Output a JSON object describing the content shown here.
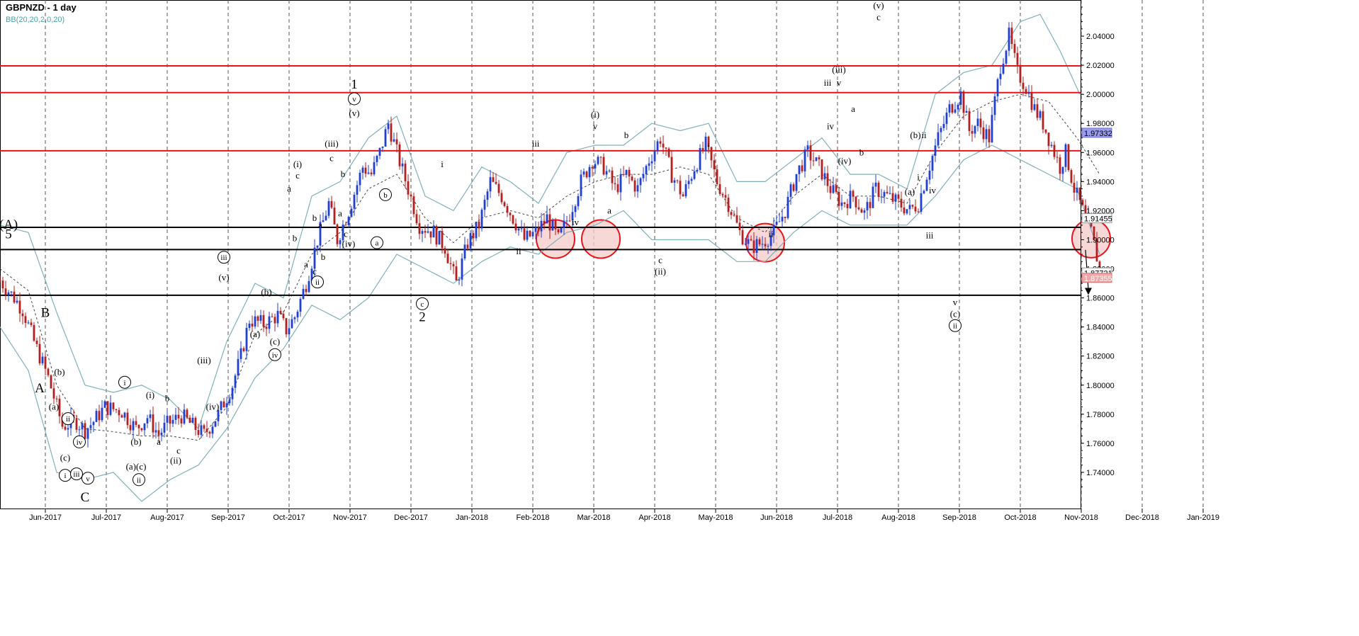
{
  "header": {
    "title": "GBPNZD - 1 day",
    "indicator": "BB(20,20,2,0,20)"
  },
  "colors": {
    "bullish": "#1f3fd8",
    "bearish": "#b41f1f",
    "resistance": "#e8141b",
    "support": "#000000",
    "bollinger": "#7fb0b8",
    "highlight": "#f6c9c9",
    "last_price_label": "#9a9cf0",
    "second_price_label": "#f1a7a7"
  },
  "chart_data": {
    "type": "candlestick",
    "symbol": "GBPNZD",
    "timeframe": "1 day",
    "ylim": [
      1.72,
      2.06
    ],
    "yticks": [
      "1.74000",
      "1.76000",
      "1.78000",
      "1.80000",
      "1.82000",
      "1.84000",
      "1.86000",
      "1.88000",
      "1.90000",
      "1.92000",
      "1.94000",
      "1.96000",
      "1.98000",
      "2.00000",
      "2.02000",
      "2.04000"
    ],
    "xticks": [
      "Jun-2017",
      "Jul-2017",
      "Aug-2017",
      "Sep-2017",
      "Oct-2017",
      "Nov-2017",
      "Dec-2017",
      "Jan-2018",
      "Feb-2018",
      "Mar-2018",
      "Apr-2018",
      "May-2018",
      "Jun-2018",
      "Jul-2018",
      "Aug-2018",
      "Sep-2018",
      "Oct-2018",
      "Nov-2018",
      "Dec-2018",
      "Jan-2019"
    ],
    "price_labels": [
      {
        "value": "1.97332",
        "style": "last"
      },
      {
        "value": "1.91455",
        "style": "plain"
      },
      {
        "value": "1.87721",
        "style": "plain"
      },
      {
        "value": "1.87355",
        "style": "second"
      }
    ],
    "horizontal_levels": [
      {
        "y": 2.0196,
        "kind": "resistance"
      },
      {
        "y": 2.0012,
        "kind": "resistance"
      },
      {
        "y": 1.9612,
        "kind": "resistance"
      },
      {
        "y": 1.9085,
        "kind": "support"
      },
      {
        "y": 1.8932,
        "kind": "support"
      },
      {
        "y": 1.8618,
        "kind": "support"
      }
    ],
    "price_path": [
      [
        -3,
        1.8905
      ],
      [
        0,
        1.872
      ],
      [
        5,
        1.86
      ],
      [
        8,
        1.852
      ],
      [
        12,
        1.83
      ],
      [
        17,
        1.805
      ],
      [
        22,
        1.772
      ],
      [
        27,
        1.775
      ],
      [
        30,
        1.769
      ],
      [
        33,
        1.775
      ],
      [
        37,
        1.785
      ],
      [
        43,
        1.782
      ],
      [
        48,
        1.77
      ],
      [
        52,
        1.778
      ],
      [
        56,
        1.766
      ],
      [
        59,
        1.773
      ],
      [
        64,
        1.779
      ],
      [
        68,
        1.772
      ],
      [
        72,
        1.766
      ],
      [
        77,
        1.78
      ],
      [
        82,
        1.8
      ],
      [
        85,
        1.82
      ],
      [
        88,
        1.845
      ],
      [
        93,
        1.842
      ],
      [
        98,
        1.848
      ],
      [
        101,
        1.838
      ],
      [
        104,
        1.847
      ],
      [
        108,
        1.87
      ],
      [
        112,
        1.9
      ],
      [
        116,
        1.925
      ],
      [
        119,
        1.9
      ],
      [
        123,
        1.92
      ],
      [
        128,
        1.95
      ],
      [
        131,
        1.945
      ],
      [
        134,
        1.96
      ],
      [
        137,
        1.98
      ],
      [
        140,
        1.96
      ],
      [
        144,
        1.935
      ],
      [
        148,
        1.91
      ],
      [
        153,
        1.905
      ],
      [
        157,
        1.895
      ],
      [
        161,
        1.87
      ],
      [
        165,
        1.898
      ],
      [
        169,
        1.91
      ],
      [
        173,
        1.94
      ],
      [
        177,
        1.93
      ],
      [
        181,
        1.915
      ],
      [
        185,
        1.9
      ],
      [
        189,
        1.905
      ],
      [
        193,
        1.915
      ],
      [
        197,
        1.9
      ],
      [
        201,
        1.918
      ],
      [
        205,
        1.94
      ],
      [
        209,
        1.955
      ],
      [
        213,
        1.95
      ],
      [
        217,
        1.935
      ],
      [
        221,
        1.945
      ],
      [
        225,
        1.935
      ],
      [
        229,
        1.955
      ],
      [
        233,
        1.97
      ],
      [
        237,
        1.945
      ],
      [
        241,
        1.93
      ],
      [
        245,
        1.95
      ],
      [
        249,
        1.965
      ],
      [
        253,
        1.94
      ],
      [
        257,
        1.925
      ],
      [
        261,
        1.905
      ],
      [
        265,
        1.895
      ],
      [
        269,
        1.898
      ],
      [
        273,
        1.905
      ],
      [
        277,
        1.92
      ],
      [
        281,
        1.945
      ],
      [
        285,
        1.96
      ],
      [
        289,
        1.95
      ],
      [
        293,
        1.935
      ],
      [
        297,
        1.925
      ],
      [
        301,
        1.93
      ],
      [
        305,
        1.918
      ],
      [
        309,
        1.935
      ],
      [
        313,
        1.93
      ],
      [
        317,
        1.925
      ],
      [
        321,
        1.92
      ],
      [
        324,
        1.925
      ],
      [
        327,
        1.945
      ],
      [
        331,
        1.97
      ],
      [
        335,
        1.99
      ],
      [
        339,
        2.0
      ],
      [
        342,
        1.975
      ],
      [
        345,
        1.98
      ],
      [
        349,
        1.97
      ],
      [
        353,
        2.02
      ],
      [
        356,
        2.04
      ],
      [
        359,
        2.015
      ],
      [
        362,
        2.005
      ],
      [
        365,
        1.99
      ],
      [
        368,
        1.98
      ],
      [
        371,
        1.965
      ],
      [
        374,
        1.95
      ],
      [
        376,
        1.96
      ],
      [
        379,
        1.935
      ],
      [
        382,
        1.92
      ],
      [
        385,
        1.905
      ],
      [
        388,
        1.88
      ]
    ],
    "bb_upper": [
      [
        0,
        1.91
      ],
      [
        10,
        1.905
      ],
      [
        20,
        1.85
      ],
      [
        30,
        1.8
      ],
      [
        40,
        1.795
      ],
      [
        50,
        1.8
      ],
      [
        60,
        1.79
      ],
      [
        70,
        1.77
      ],
      [
        80,
        1.83
      ],
      [
        90,
        1.87
      ],
      [
        100,
        1.86
      ],
      [
        110,
        1.93
      ],
      [
        120,
        1.94
      ],
      [
        130,
        1.97
      ],
      [
        140,
        1.985
      ],
      [
        150,
        1.93
      ],
      [
        160,
        1.92
      ],
      [
        170,
        1.95
      ],
      [
        180,
        1.94
      ],
      [
        190,
        1.925
      ],
      [
        200,
        1.96
      ],
      [
        210,
        1.965
      ],
      [
        220,
        1.965
      ],
      [
        230,
        1.98
      ],
      [
        240,
        1.975
      ],
      [
        250,
        1.98
      ],
      [
        260,
        1.94
      ],
      [
        270,
        1.94
      ],
      [
        280,
        1.955
      ],
      [
        290,
        1.97
      ],
      [
        300,
        1.945
      ],
      [
        310,
        1.945
      ],
      [
        320,
        1.935
      ],
      [
        330,
        2.0
      ],
      [
        340,
        2.015
      ],
      [
        350,
        2.02
      ],
      [
        360,
        2.05
      ],
      [
        367,
        2.055
      ],
      [
        374,
        2.03
      ],
      [
        381,
        2.0
      ]
    ],
    "bb_lower": [
      [
        0,
        1.84
      ],
      [
        10,
        1.81
      ],
      [
        20,
        1.74
      ],
      [
        30,
        1.735
      ],
      [
        40,
        1.74
      ],
      [
        50,
        1.72
      ],
      [
        60,
        1.735
      ],
      [
        70,
        1.745
      ],
      [
        80,
        1.77
      ],
      [
        90,
        1.805
      ],
      [
        100,
        1.825
      ],
      [
        110,
        1.855
      ],
      [
        120,
        1.845
      ],
      [
        130,
        1.86
      ],
      [
        140,
        1.89
      ],
      [
        150,
        1.88
      ],
      [
        160,
        1.87
      ],
      [
        170,
        1.885
      ],
      [
        180,
        1.895
      ],
      [
        190,
        1.89
      ],
      [
        200,
        1.905
      ],
      [
        210,
        1.91
      ],
      [
        220,
        1.92
      ],
      [
        230,
        1.9
      ],
      [
        240,
        1.9
      ],
      [
        250,
        1.9
      ],
      [
        260,
        1.885
      ],
      [
        270,
        1.885
      ],
      [
        280,
        1.905
      ],
      [
        290,
        1.92
      ],
      [
        300,
        1.91
      ],
      [
        310,
        1.91
      ],
      [
        320,
        1.91
      ],
      [
        330,
        1.93
      ],
      [
        340,
        1.955
      ],
      [
        350,
        1.965
      ],
      [
        360,
        1.955
      ],
      [
        370,
        1.945
      ],
      [
        380,
        1.935
      ],
      [
        388,
        1.89
      ]
    ],
    "bb_middle": [
      [
        0,
        1.88
      ],
      [
        10,
        1.865
      ],
      [
        20,
        1.8
      ],
      [
        30,
        1.77
      ],
      [
        40,
        1.768
      ],
      [
        50,
        1.765
      ],
      [
        60,
        1.765
      ],
      [
        70,
        1.762
      ],
      [
        80,
        1.785
      ],
      [
        90,
        1.835
      ],
      [
        100,
        1.85
      ],
      [
        110,
        1.89
      ],
      [
        120,
        1.905
      ],
      [
        130,
        1.935
      ],
      [
        140,
        1.945
      ],
      [
        150,
        1.915
      ],
      [
        160,
        1.898
      ],
      [
        170,
        1.915
      ],
      [
        180,
        1.92
      ],
      [
        190,
        1.915
      ],
      [
        200,
        1.93
      ],
      [
        210,
        1.94
      ],
      [
        220,
        1.945
      ],
      [
        230,
        1.945
      ],
      [
        240,
        1.95
      ],
      [
        250,
        1.945
      ],
      [
        260,
        1.915
      ],
      [
        270,
        1.905
      ],
      [
        280,
        1.93
      ],
      [
        290,
        1.945
      ],
      [
        300,
        1.93
      ],
      [
        310,
        1.93
      ],
      [
        320,
        1.925
      ],
      [
        330,
        1.96
      ],
      [
        340,
        1.985
      ],
      [
        350,
        1.995
      ],
      [
        360,
        2.0
      ],
      [
        370,
        1.995
      ],
      [
        380,
        1.97
      ],
      [
        388,
        1.945
      ]
    ],
    "highlight_circles": [
      {
        "x": 196,
        "y": 1.9005
      },
      {
        "x": 212,
        "y": 1.9005
      },
      {
        "x": 270,
        "y": 1.898
      },
      {
        "x": 385,
        "y": 1.9008
      }
    ],
    "projection_arrow": {
      "from": [
        383,
        1.893
      ],
      "to": [
        384,
        1.862
      ]
    },
    "wave_labels": [
      {
        "t": "(A)",
        "x": 3,
        "y": 1.9075,
        "big": true
      },
      {
        "t": "5",
        "x": 3,
        "y": 1.901,
        "big": true
      },
      {
        "t": "B",
        "x": 16,
        "y": 1.847,
        "big": true
      },
      {
        "t": "A",
        "x": 14,
        "y": 1.795,
        "big": true
      },
      {
        "t": "C",
        "x": 30,
        "y": 1.72,
        "big": true
      },
      {
        "t": "(b)",
        "x": 21,
        "y": 1.807
      },
      {
        "t": "(a)",
        "x": 19,
        "y": 1.783
      },
      {
        "t": "ii",
        "x": 24,
        "y": 1.775,
        "circled": true
      },
      {
        "t": "iv",
        "x": 28,
        "y": 1.759,
        "circled": true
      },
      {
        "t": "(c)",
        "x": 23,
        "y": 1.748
      },
      {
        "t": "i",
        "x": 23,
        "y": 1.736,
        "circled": true
      },
      {
        "t": "iii",
        "x": 27,
        "y": 1.737,
        "circled": true
      },
      {
        "t": "v",
        "x": 31,
        "y": 1.734,
        "circled": true
      },
      {
        "t": "i",
        "x": 44,
        "y": 1.8,
        "circled": true
      },
      {
        "t": "(b)",
        "x": 48,
        "y": 1.759
      },
      {
        "t": "(a)(c)",
        "x": 48,
        "y": 1.742
      },
      {
        "t": "ii",
        "x": 49,
        "y": 1.733,
        "circled": true
      },
      {
        "t": "(i)",
        "x": 53,
        "y": 1.791
      },
      {
        "t": "b",
        "x": 59,
        "y": 1.789
      },
      {
        "t": "a",
        "x": 56,
        "y": 1.759
      },
      {
        "t": "c",
        "x": 63,
        "y": 1.753
      },
      {
        "t": "(ii)",
        "x": 62,
        "y": 1.746
      },
      {
        "t": "(iii)",
        "x": 72,
        "y": 1.815
      },
      {
        "t": "(iv)",
        "x": 75,
        "y": 1.783
      },
      {
        "t": "iii",
        "x": 79,
        "y": 1.886,
        "circled": true
      },
      {
        "t": "(v)",
        "x": 79,
        "y": 1.872
      },
      {
        "t": "(b)",
        "x": 94,
        "y": 1.862
      },
      {
        "t": "(a)",
        "x": 90,
        "y": 1.833
      },
      {
        "t": "(c)",
        "x": 97,
        "y": 1.828
      },
      {
        "t": "iv",
        "x": 97,
        "y": 1.819,
        "circled": true
      },
      {
        "t": "(i)",
        "x": 105,
        "y": 1.95
      },
      {
        "t": "c",
        "x": 105,
        "y": 1.942
      },
      {
        "t": "a",
        "x": 102,
        "y": 1.933
      },
      {
        "t": "b",
        "x": 104,
        "y": 1.899
      },
      {
        "t": "b",
        "x": 111,
        "y": 1.913
      },
      {
        "t": "a",
        "x": 113,
        "y": 1.908
      },
      {
        "t": "b",
        "x": 114,
        "y": 1.886
      },
      {
        "t": "a",
        "x": 108,
        "y": 1.881
      },
      {
        "t": "c",
        "x": 111,
        "y": 1.876
      },
      {
        "t": "ii",
        "x": 112,
        "y": 1.869,
        "circled": true
      },
      {
        "t": "(iii)",
        "x": 117,
        "y": 1.964
      },
      {
        "t": "c",
        "x": 117,
        "y": 1.954
      },
      {
        "t": "b",
        "x": 121,
        "y": 1.943
      },
      {
        "t": "a",
        "x": 120,
        "y": 1.916
      },
      {
        "t": "c",
        "x": 122,
        "y": 1.902
      },
      {
        "t": "(iv)",
        "x": 123,
        "y": 1.895
      },
      {
        "t": "1",
        "x": 125,
        "y": 2.004,
        "big": true
      },
      {
        "t": "v",
        "x": 125,
        "y": 1.995,
        "circled": true
      },
      {
        "t": "(v)",
        "x": 125,
        "y": 1.985
      },
      {
        "t": "b",
        "x": 136,
        "y": 1.929,
        "circled": true
      },
      {
        "t": "a",
        "x": 133,
        "y": 1.896,
        "circled": true
      },
      {
        "t": "c",
        "x": 149,
        "y": 1.854,
        "circled": true
      },
      {
        "t": "2",
        "x": 149,
        "y": 1.844,
        "big": true
      },
      {
        "t": "i",
        "x": 156,
        "y": 1.95
      },
      {
        "t": "ii",
        "x": 183,
        "y": 1.89
      },
      {
        "t": "iii",
        "x": 189,
        "y": 1.964
      },
      {
        "t": "iv",
        "x": 203,
        "y": 1.91
      },
      {
        "t": "(i)",
        "x": 210,
        "y": 1.984
      },
      {
        "t": "v",
        "x": 210,
        "y": 1.976
      },
      {
        "t": "b",
        "x": 221,
        "y": 1.97
      },
      {
        "t": "a",
        "x": 215,
        "y": 1.918
      },
      {
        "t": "c",
        "x": 233,
        "y": 1.884
      },
      {
        "t": "(ii)",
        "x": 233,
        "y": 1.876
      },
      {
        "t": "i",
        "x": 250,
        "y": 1.962
      },
      {
        "t": "ii",
        "x": 272,
        "y": 1.902
      },
      {
        "t": "(iii)",
        "x": 296,
        "y": 2.015
      },
      {
        "t": "v",
        "x": 296,
        "y": 2.006
      },
      {
        "t": "iii",
        "x": 292,
        "y": 2.006
      },
      {
        "t": "iv",
        "x": 293,
        "y": 1.976
      },
      {
        "t": "a",
        "x": 301,
        "y": 1.988
      },
      {
        "t": "(iv)",
        "x": 298,
        "y": 1.952
      },
      {
        "t": "b",
        "x": 304,
        "y": 1.958
      },
      {
        "t": "(v)",
        "x": 310,
        "y": 2.059
      },
      {
        "t": "c",
        "x": 310,
        "y": 2.051
      },
      {
        "t": "(b)",
        "x": 323,
        "y": 1.97
      },
      {
        "t": "ii",
        "x": 326,
        "y": 1.97
      },
      {
        "t": "i",
        "x": 324,
        "y": 1.941
      },
      {
        "t": "(a)",
        "x": 321,
        "y": 1.931
      },
      {
        "t": "iv",
        "x": 329,
        "y": 1.932
      },
      {
        "t": "iii",
        "x": 328,
        "y": 1.901
      },
      {
        "t": "v",
        "x": 337,
        "y": 1.855
      },
      {
        "t": "(c)",
        "x": 337,
        "y": 1.847
      },
      {
        "t": "ii",
        "x": 337,
        "y": 1.839,
        "circled": true
      }
    ]
  }
}
